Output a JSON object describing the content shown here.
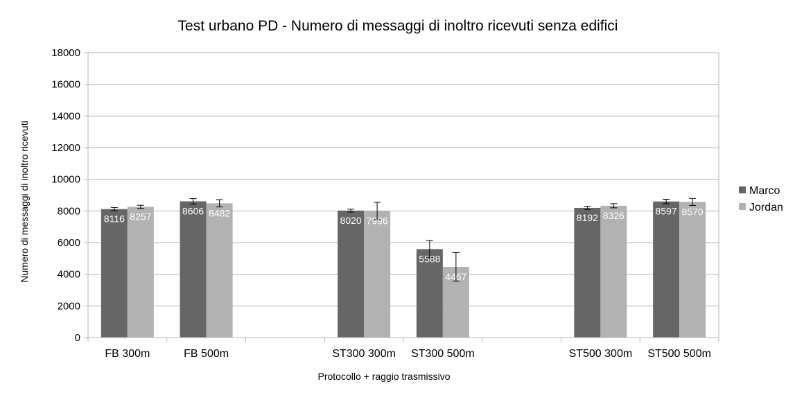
{
  "chart_data": {
    "type": "bar",
    "title": "Test urbano PD - Numero di messaggi di inoltro ricevuti senza edifici",
    "xlabel": "Protocollo + raggio trasmissivo",
    "ylabel": "Numero di messaggi di inoltro ricevuti",
    "ylim": [
      0,
      18000
    ],
    "yticks": [
      0,
      2000,
      4000,
      6000,
      8000,
      10000,
      12000,
      14000,
      16000,
      18000
    ],
    "grid": true,
    "legend_position": "right",
    "categories": [
      "FB 300m",
      "FB 500m",
      "",
      "ST300 300m",
      "ST300 500m",
      "",
      "ST500 300m",
      "ST500 500m"
    ],
    "series": [
      {
        "name": "Marco",
        "color": "#666666",
        "values": [
          8116,
          8606,
          null,
          8020,
          5588,
          null,
          8192,
          8597
        ],
        "labels": [
          "8116",
          "8606",
          "",
          "8020",
          "5588",
          "",
          "8192",
          "8597"
        ],
        "error": [
          100,
          170,
          null,
          90,
          550,
          null,
          100,
          140
        ]
      },
      {
        "name": "Jordan",
        "color": "#b2b2b2",
        "values": [
          8257,
          8482,
          null,
          7996,
          4467,
          null,
          8326,
          8570
        ],
        "labels": [
          "8257",
          "8482",
          "",
          "7996",
          "4467",
          "",
          "8326",
          "8570"
        ],
        "error": [
          100,
          230,
          null,
          550,
          900,
          null,
          130,
          220
        ]
      }
    ]
  }
}
